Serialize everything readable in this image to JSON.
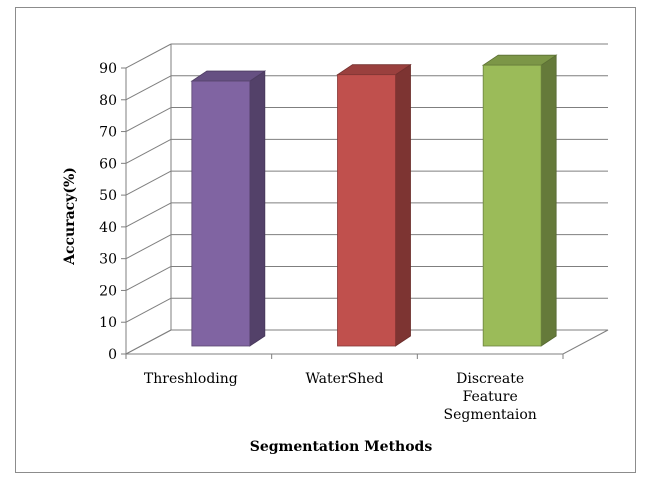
{
  "chart_data": {
    "type": "bar",
    "style": "3d-column",
    "categories": [
      [
        "Threshloding"
      ],
      [
        "WaterShed"
      ],
      [
        "Discreate",
        "Feature",
        "Segmentaion"
      ]
    ],
    "values": [
      84,
      86,
      89
    ],
    "colors": [
      "#8064a2",
      "#c0504d",
      "#9bbb59"
    ],
    "xlabel": "Segmentation Methods",
    "ylabel": "Accuracy(%)",
    "ylim": [
      0,
      90
    ],
    "yticks": [
      "0",
      "10",
      "20",
      "30",
      "40",
      "50",
      "60",
      "70",
      "80",
      "90"
    ],
    "grid": true,
    "legend": "none"
  }
}
